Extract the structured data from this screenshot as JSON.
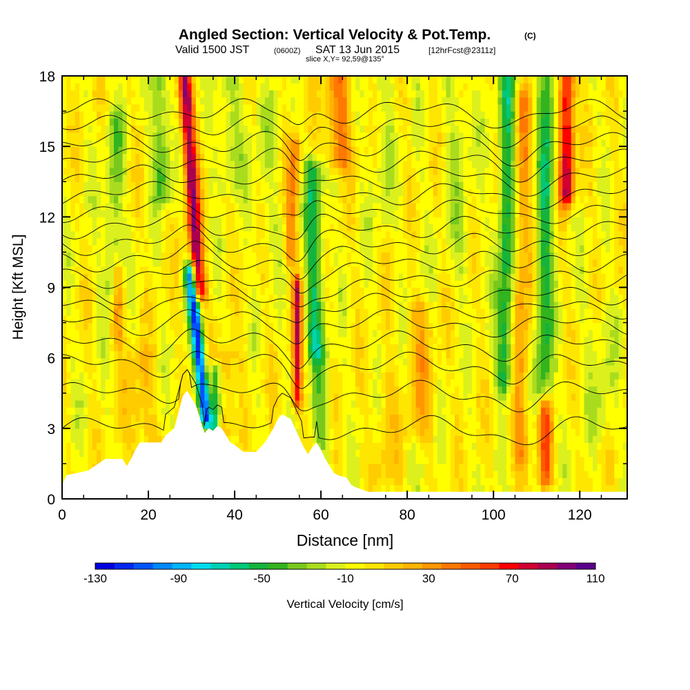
{
  "header": {
    "title": "Angled Section: Vertical Velocity & Pot.Temp.",
    "title_units": "(C)",
    "valid_prefix": "Valid 1500 JST",
    "valid_utc": "(0600Z)",
    "valid_date": "SAT 13 Jun 2015",
    "forecast": "[12hrFcst@2311z]",
    "slice": "slice X,Y= 92,59@135°"
  },
  "chart_data": {
    "type": "heatmap",
    "xlabel": "Distance [nm]",
    "ylabel": "Height [Kft MSL]",
    "xlim": [
      0,
      131
    ],
    "ylim": [
      0,
      18
    ],
    "x_ticks": [
      "0",
      "20",
      "40",
      "60",
      "80",
      "100",
      "120"
    ],
    "x_tick_values": [
      0,
      20,
      40,
      60,
      80,
      100,
      120
    ],
    "y_ticks": [
      "0",
      "3",
      "6",
      "9",
      "12",
      "15",
      "18"
    ],
    "y_tick_values": [
      0,
      3,
      6,
      9,
      12,
      15,
      18
    ],
    "field": "Vertical Velocity [cm/s]",
    "colorbar": {
      "label": "Vertical Velocity [cm/s]",
      "min": -130,
      "max": 110,
      "step": 10,
      "tick_labels": [
        "-130",
        "-90",
        "-50",
        "-10",
        "30",
        "70",
        "110"
      ],
      "tick_values": [
        -130,
        -90,
        -50,
        -10,
        30,
        70,
        110
      ],
      "colors": [
        "#0000e0",
        "#0028f0",
        "#0055ff",
        "#0088ff",
        "#00b4ff",
        "#00dcf0",
        "#00d2b4",
        "#00c878",
        "#14b43c",
        "#32b41e",
        "#78c81e",
        "#aadc1e",
        "#dcf01e",
        "#ffff00",
        "#ffe600",
        "#ffcc00",
        "#ffb400",
        "#ff9600",
        "#ff7800",
        "#ff5a00",
        "#ff3c00",
        "#ff0000",
        "#d20032",
        "#aa0050",
        "#820078",
        "#5a008c"
      ]
    },
    "background_value": 8,
    "features": [
      {
        "x": 30,
        "y0": 9,
        "y1": 18,
        "w": 1.6,
        "tilt": -3.2,
        "v": 100
      },
      {
        "x": 31.5,
        "y0": 3.6,
        "y1": 9.5,
        "w": 1.3,
        "tilt": -3.5,
        "v": -120
      },
      {
        "x": 35.5,
        "y0": 2.8,
        "y1": 5.2,
        "w": 1.3,
        "tilt": 0,
        "v": -65
      },
      {
        "x": 38,
        "y0": 3,
        "y1": 6,
        "w": 2.5,
        "tilt": 0,
        "v": 25
      },
      {
        "x": 54.5,
        "y0": 4.4,
        "y1": 9,
        "w": 1.0,
        "tilt": 0,
        "v": 80
      },
      {
        "x": 53.5,
        "y0": 10.5,
        "y1": 15,
        "w": 1.5,
        "tilt": 1,
        "v": 40
      },
      {
        "x": 58.5,
        "y0": 6.5,
        "y1": 14,
        "w": 2.0,
        "tilt": -0.6,
        "v": -55
      },
      {
        "x": 60,
        "y0": 2.5,
        "y1": 6,
        "w": 2.0,
        "tilt": 0,
        "v": -30
      },
      {
        "x": 64,
        "y0": 14.5,
        "y1": 18,
        "w": 3.0,
        "tilt": 0,
        "v": 45
      },
      {
        "x": 103,
        "y0": 5,
        "y1": 18,
        "w": 2.0,
        "tilt": 1.0,
        "v": -55
      },
      {
        "x": 106.5,
        "y0": 2,
        "y1": 17,
        "w": 2.0,
        "tilt": 0.5,
        "v": 35
      },
      {
        "x": 112,
        "y0": 4.5,
        "y1": 18,
        "w": 2.0,
        "tilt": 1.0,
        "v": -50
      },
      {
        "x": 117,
        "y0": 13,
        "y1": 18,
        "w": 1.7,
        "tilt": 0,
        "v": 90
      },
      {
        "x": 112,
        "y0": 1,
        "y1": 4,
        "w": 1.5,
        "tilt": 0,
        "v": 55
      },
      {
        "x": 23,
        "y0": 13,
        "y1": 18,
        "w": 2.0,
        "tilt": -0.7,
        "v": -40
      },
      {
        "x": 12,
        "y0": 9,
        "y1": 16,
        "w": 2.0,
        "tilt": 1.5,
        "v": -30
      },
      {
        "x": 13,
        "y0": 7,
        "y1": 9.5,
        "w": 1.4,
        "tilt": 0,
        "v": 35
      },
      {
        "x": 39,
        "y0": 13.5,
        "y1": 18,
        "w": 3.0,
        "tilt": 0,
        "v": -20
      },
      {
        "x": 47,
        "y0": 11,
        "y1": 17,
        "w": 4.0,
        "tilt": 0,
        "v": -10
      },
      {
        "x": 74,
        "y0": 12,
        "y1": 18,
        "w": 3.0,
        "tilt": 0,
        "v": -12
      },
      {
        "x": 92,
        "y0": 10,
        "y1": 18,
        "w": 3.0,
        "tilt": 0,
        "v": -15
      },
      {
        "x": 83,
        "y0": 3,
        "y1": 8,
        "w": 3.0,
        "tilt": 0,
        "v": 25
      },
      {
        "x": 75,
        "y0": 1,
        "y1": 5,
        "w": 2.5,
        "tilt": 0,
        "v": 15
      },
      {
        "x": 125,
        "y0": 3,
        "y1": 8,
        "w": 3.0,
        "tilt": 0,
        "v": -15
      },
      {
        "x": 18,
        "y0": 1.5,
        "y1": 6,
        "w": 3.0,
        "tilt": 0,
        "v": 22
      }
    ],
    "terrain": [
      [
        0,
        0.6
      ],
      [
        1,
        1.0
      ],
      [
        6,
        1.2
      ],
      [
        10,
        1.7
      ],
      [
        14,
        1.7
      ],
      [
        15,
        1.4
      ],
      [
        16,
        1.7
      ],
      [
        17,
        2.1
      ],
      [
        18,
        2.4
      ],
      [
        20,
        2.4
      ],
      [
        23,
        2.4
      ],
      [
        24,
        2.7
      ],
      [
        26,
        3.0
      ],
      [
        27,
        3.7
      ],
      [
        28,
        4.4
      ],
      [
        29,
        4.6
      ],
      [
        30,
        4.3
      ],
      [
        31,
        4.0
      ],
      [
        32,
        3.4
      ],
      [
        33,
        2.8
      ],
      [
        34,
        3.0
      ],
      [
        35,
        2.9
      ],
      [
        36,
        3.1
      ],
      [
        37,
        3.0
      ],
      [
        38,
        2.7
      ],
      [
        39,
        2.4
      ],
      [
        40,
        2.3
      ],
      [
        42,
        2.0
      ],
      [
        45,
        2.0
      ],
      [
        46,
        2.2
      ],
      [
        47,
        2.4
      ],
      [
        48,
        2.7
      ],
      [
        49,
        3.0
      ],
      [
        50,
        3.4
      ],
      [
        51,
        3.6
      ],
      [
        53,
        3.4
      ],
      [
        54,
        3.0
      ],
      [
        55,
        2.6
      ],
      [
        56,
        2.2
      ],
      [
        57,
        1.9
      ],
      [
        58,
        2.2
      ],
      [
        59,
        2.4
      ],
      [
        60,
        2.1
      ],
      [
        61,
        1.7
      ],
      [
        62,
        1.4
      ],
      [
        63,
        1.1
      ],
      [
        64,
        1.0
      ],
      [
        66,
        0.9
      ],
      [
        67,
        0.6
      ],
      [
        68,
        0.5
      ],
      [
        71,
        0.3
      ],
      [
        131,
        0.3
      ]
    ],
    "theta_levels": [
      30,
      32,
      34,
      36,
      38,
      40,
      42,
      44,
      46,
      48,
      50,
      52,
      54,
      56,
      58,
      60,
      62,
      64
    ],
    "theta_base_heights": [
      3.0,
      4.5,
      5.7,
      6.6,
      7.5,
      8.2,
      8.8,
      9.5,
      10.2,
      10.9,
      11.6,
      12.3,
      13.0,
      13.7,
      14.4,
      15.1,
      15.8,
      16.5
    ]
  }
}
